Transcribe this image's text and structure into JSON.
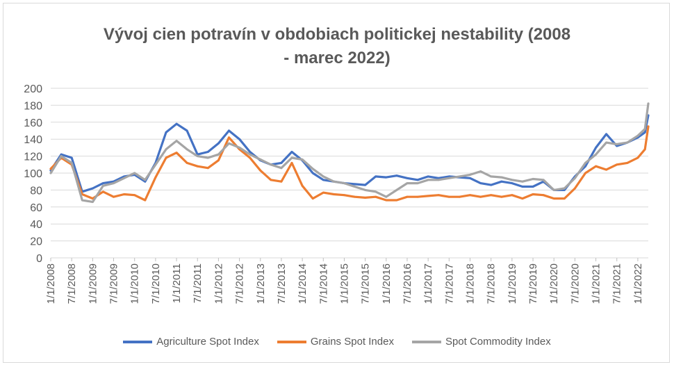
{
  "chart_data": {
    "type": "line",
    "title_line1": "Vývoj cien potravín v obdobiach politickej nestability (2008",
    "title_line2": "- marec 2022)",
    "ylim": [
      0,
      200
    ],
    "yticks": [
      0,
      20,
      40,
      60,
      80,
      100,
      120,
      140,
      160,
      180,
      200
    ],
    "xlim": [
      "2008-01-01",
      "2022-03-31"
    ],
    "xticks": [
      "1/1/2008",
      "7/1/2008",
      "1/1/2009",
      "7/1/2009",
      "1/1/2010",
      "7/1/2010",
      "1/1/2011",
      "7/1/2011",
      "1/1/2012",
      "7/1/2012",
      "1/1/2013",
      "7/1/2013",
      "1/1/2014",
      "7/1/2014",
      "1/1/2015",
      "7/1/2015",
      "1/1/2016",
      "7/1/2016",
      "1/1/2017",
      "7/1/2017",
      "1/1/2018",
      "7/1/2018",
      "1/1/2019",
      "7/1/2019",
      "1/1/2020",
      "7/1/2020",
      "1/1/2021",
      "7/1/2021",
      "1/1/2022"
    ],
    "grid": true,
    "legend_position": "bottom",
    "x": [
      2008.0,
      2008.25,
      2008.5,
      2008.75,
      2009.0,
      2009.25,
      2009.5,
      2009.75,
      2010.0,
      2010.25,
      2010.5,
      2010.75,
      2011.0,
      2011.25,
      2011.5,
      2011.75,
      2012.0,
      2012.25,
      2012.5,
      2012.75,
      2013.0,
      2013.25,
      2013.5,
      2013.75,
      2014.0,
      2014.25,
      2014.5,
      2014.75,
      2015.0,
      2015.25,
      2015.5,
      2015.75,
      2016.0,
      2016.25,
      2016.5,
      2016.75,
      2017.0,
      2017.25,
      2017.5,
      2017.75,
      2018.0,
      2018.25,
      2018.5,
      2018.75,
      2019.0,
      2019.25,
      2019.5,
      2019.75,
      2020.0,
      2020.25,
      2020.5,
      2020.75,
      2021.0,
      2021.25,
      2021.5,
      2021.75,
      2022.0,
      2022.17,
      2022.25
    ],
    "series": [
      {
        "name": "Agriculture Spot Index",
        "color": "#4472c4",
        "values": [
          103,
          122,
          118,
          78,
          82,
          88,
          90,
          96,
          98,
          90,
          112,
          148,
          158,
          150,
          122,
          125,
          135,
          150,
          140,
          125,
          115,
          110,
          112,
          125,
          115,
          100,
          92,
          90,
          88,
          87,
          86,
          96,
          95,
          97,
          94,
          92,
          96,
          94,
          96,
          95,
          94,
          88,
          86,
          90,
          88,
          84,
          84,
          90,
          80,
          80,
          96,
          108,
          130,
          146,
          132,
          136,
          142,
          148,
          168
        ]
      },
      {
        "name": "Grains Spot Index",
        "color": "#ed7d31",
        "values": [
          105,
          118,
          110,
          75,
          70,
          78,
          72,
          75,
          74,
          68,
          95,
          118,
          124,
          112,
          108,
          106,
          115,
          142,
          128,
          118,
          103,
          92,
          90,
          112,
          85,
          70,
          77,
          75,
          74,
          72,
          71,
          72,
          68,
          68,
          72,
          72,
          73,
          74,
          72,
          72,
          74,
          72,
          74,
          72,
          74,
          70,
          75,
          74,
          70,
          70,
          82,
          100,
          108,
          104,
          110,
          112,
          118,
          128,
          155
        ]
      },
      {
        "name": "Spot Commodity Index",
        "color": "#a5a5a5",
        "values": [
          100,
          120,
          112,
          68,
          66,
          85,
          88,
          94,
          100,
          92,
          110,
          128,
          138,
          128,
          120,
          118,
          122,
          135,
          130,
          122,
          116,
          110,
          106,
          118,
          116,
          105,
          96,
          90,
          88,
          84,
          80,
          78,
          72,
          80,
          88,
          88,
          92,
          92,
          94,
          96,
          98,
          102,
          96,
          95,
          92,
          90,
          93,
          92,
          80,
          82,
          94,
          112,
          122,
          136,
          134,
          136,
          144,
          152,
          182
        ]
      }
    ]
  }
}
